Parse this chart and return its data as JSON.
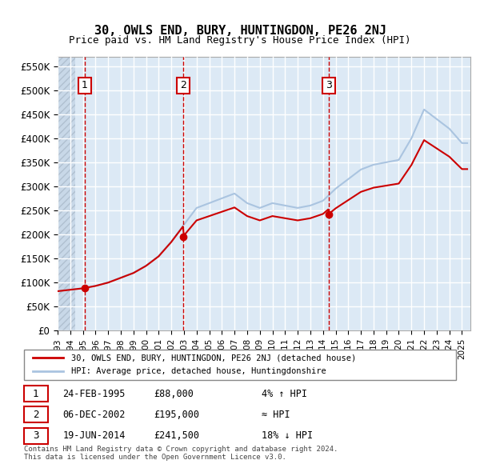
{
  "title": "30, OWLS END, BURY, HUNTINGDON, PE26 2NJ",
  "subtitle": "Price paid vs. HM Land Registry's House Price Index (HPI)",
  "ylabel": "",
  "ylim": [
    0,
    570000
  ],
  "yticks": [
    0,
    50000,
    100000,
    150000,
    200000,
    250000,
    300000,
    350000,
    400000,
    450000,
    500000,
    550000
  ],
  "ytick_labels": [
    "£0",
    "£50K",
    "£100K",
    "£150K",
    "£200K",
    "£250K",
    "£300K",
    "£350K",
    "£400K",
    "£450K",
    "£500K",
    "£550K"
  ],
  "sale_dates": [
    "1995-02-24",
    "2002-12-06",
    "2014-06-19"
  ],
  "sale_prices": [
    88000,
    195000,
    241500
  ],
  "sale_labels": [
    "1",
    "2",
    "3"
  ],
  "hpi_color": "#aac4e0",
  "price_color": "#cc0000",
  "sale_dot_color": "#cc0000",
  "dashed_line_color": "#cc0000",
  "legend_entries": [
    "30, OWLS END, BURY, HUNTINGDON, PE26 2NJ (detached house)",
    "HPI: Average price, detached house, Huntingdonshire"
  ],
  "table_rows": [
    [
      "1",
      "24-FEB-1995",
      "£88,000",
      "4% ↑ HPI"
    ],
    [
      "2",
      "06-DEC-2002",
      "£195,000",
      "≈ HPI"
    ],
    [
      "3",
      "19-JUN-2014",
      "£241,500",
      "18% ↓ HPI"
    ]
  ],
  "footnote1": "Contains HM Land Registry data © Crown copyright and database right 2024.",
  "footnote2": "This data is licensed under the Open Government Licence v3.0.",
  "background_plot": "#dce9f5",
  "background_hatch": "#c8d8e8",
  "grid_color": "#ffffff"
}
